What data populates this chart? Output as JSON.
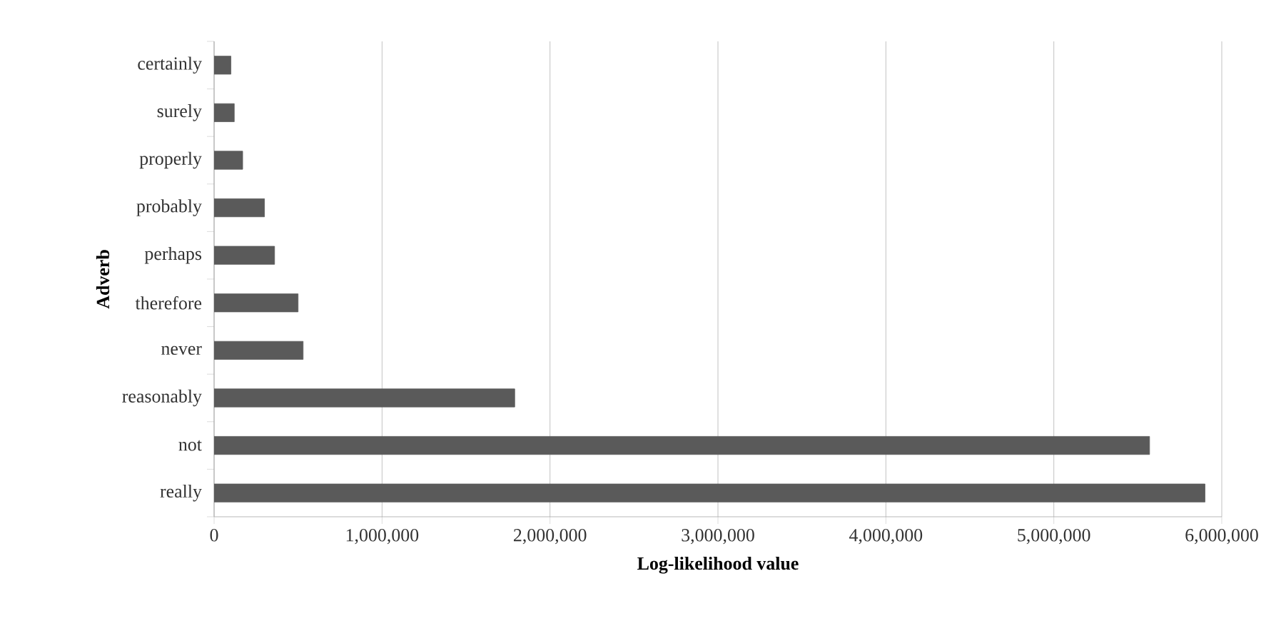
{
  "chart_data": {
    "type": "bar",
    "orientation": "horizontal",
    "xlabel": "Log-likelihood  value",
    "ylabel": "Adverb",
    "categories": [
      "certainly",
      "surely",
      "properly",
      "probably",
      "perhaps",
      "therefore",
      "never",
      "reasonably",
      "not",
      "really"
    ],
    "values": [
      100000,
      120000,
      170000,
      300000,
      360000,
      500000,
      530000,
      1790000,
      5570000,
      5900000
    ],
    "color": "#5a5a5a",
    "xlim": [
      0,
      6000000
    ],
    "xticks": [
      {
        "value": 0,
        "label": "0"
      },
      {
        "value": 1000000,
        "label": "1,000,000"
      },
      {
        "value": 2000000,
        "label": "2,000,000"
      },
      {
        "value": 3000000,
        "label": "3,000,000"
      },
      {
        "value": 4000000,
        "label": "4,000,000"
      },
      {
        "value": 5000000,
        "label": "5,000,000"
      },
      {
        "value": 6000000,
        "label": "6,000,000"
      }
    ],
    "grid": "x"
  }
}
